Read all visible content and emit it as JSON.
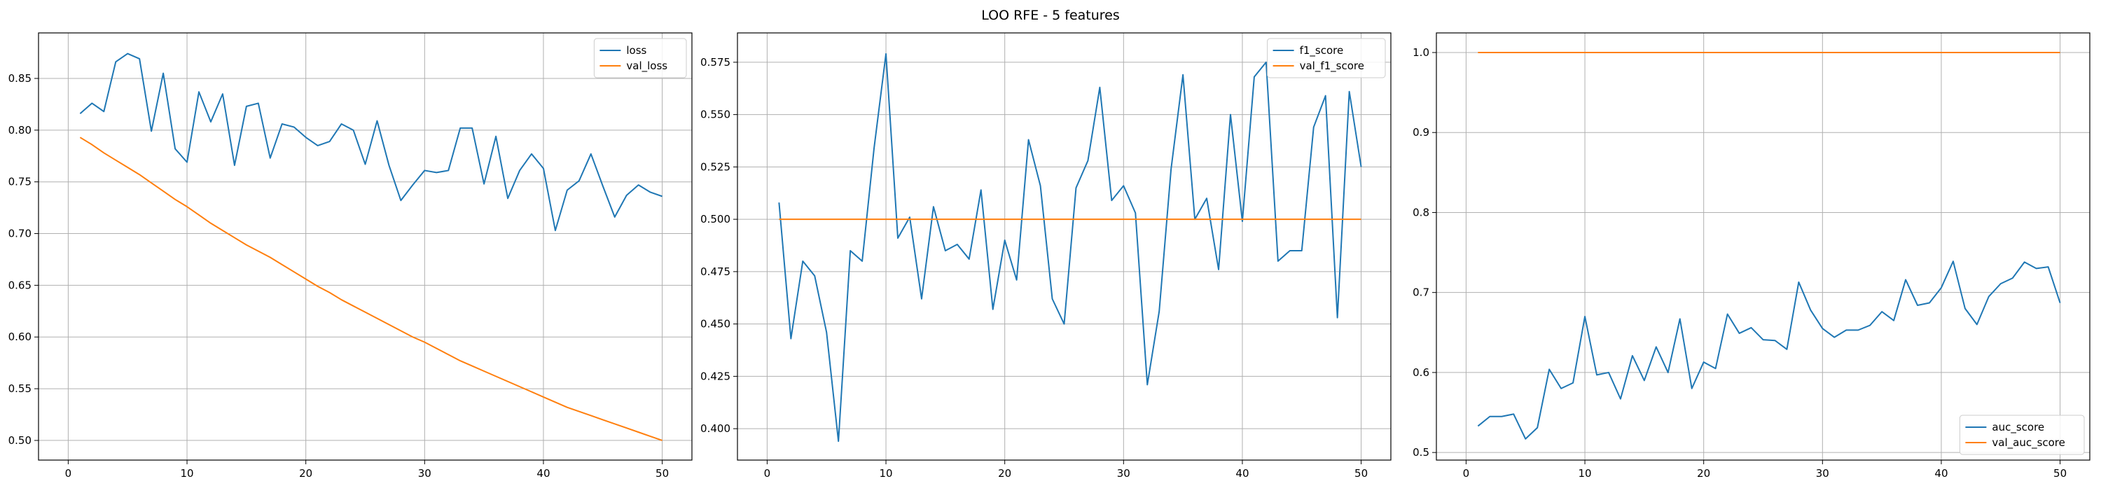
{
  "figure": {
    "title": "LOO RFE - 5 features"
  },
  "chart_data": [
    {
      "type": "line",
      "title": "",
      "xlabel": "",
      "ylabel": "",
      "xlim": [
        -2.5,
        52.5
      ],
      "ylim": [
        0.481,
        0.894
      ],
      "xticks": [
        0,
        10,
        20,
        30,
        40,
        50
      ],
      "yticks": [
        0.5,
        0.55,
        0.6,
        0.65,
        0.7,
        0.75,
        0.8,
        0.85
      ],
      "ytick_labels": [
        "0.50",
        "0.55",
        "0.60",
        "0.65",
        "0.70",
        "0.75",
        "0.80",
        "0.85"
      ],
      "grid": true,
      "legend": "upper right",
      "series": [
        {
          "name": "loss",
          "color": "#1f77b4",
          "x": [
            1,
            2,
            3,
            4,
            5,
            6,
            7,
            8,
            9,
            10,
            11,
            12,
            13,
            14,
            15,
            16,
            17,
            18,
            19,
            20,
            21,
            22,
            23,
            24,
            25,
            26,
            27,
            28,
            29,
            30,
            31,
            32,
            33,
            34,
            35,
            36,
            37,
            38,
            39,
            40,
            41,
            42,
            43,
            44,
            45,
            46,
            47,
            48,
            49,
            50
          ],
          "y": [
            0.816,
            0.826,
            0.818,
            0.866,
            0.874,
            0.869,
            0.799,
            0.855,
            0.782,
            0.769,
            0.837,
            0.808,
            0.835,
            0.766,
            0.823,
            0.826,
            0.773,
            0.806,
            0.803,
            0.793,
            0.785,
            0.789,
            0.806,
            0.8,
            0.767,
            0.809,
            0.766,
            0.732,
            0.747,
            0.761,
            0.759,
            0.761,
            0.802,
            0.802,
            0.748,
            0.794,
            0.734,
            0.761,
            0.777,
            0.763,
            0.703,
            0.742,
            0.751,
            0.777,
            0.746,
            0.716,
            0.737,
            0.747,
            0.74,
            0.736
          ]
        },
        {
          "name": "val_loss",
          "color": "#ff7f0e",
          "x": [
            1,
            2,
            3,
            4,
            5,
            6,
            7,
            8,
            9,
            10,
            11,
            12,
            13,
            14,
            15,
            16,
            17,
            18,
            19,
            20,
            21,
            22,
            23,
            24,
            25,
            26,
            27,
            28,
            29,
            30,
            31,
            32,
            33,
            34,
            35,
            36,
            37,
            38,
            39,
            40,
            41,
            42,
            43,
            44,
            45,
            46,
            47,
            48,
            49,
            50
          ],
          "y": [
            0.793,
            0.786,
            0.778,
            0.771,
            0.764,
            0.757,
            0.749,
            0.741,
            0.733,
            0.726,
            0.718,
            0.71,
            0.703,
            0.696,
            0.689,
            0.683,
            0.677,
            0.67,
            0.663,
            0.656,
            0.649,
            0.643,
            0.636,
            0.63,
            0.624,
            0.618,
            0.612,
            0.606,
            0.6,
            0.595,
            0.589,
            0.583,
            0.577,
            0.572,
            0.567,
            0.562,
            0.557,
            0.552,
            0.547,
            0.542,
            0.537,
            0.532,
            0.528,
            0.524,
            0.52,
            0.516,
            0.512,
            0.508,
            0.504,
            0.5
          ]
        }
      ]
    },
    {
      "type": "line",
      "title": "",
      "xlabel": "",
      "ylabel": "",
      "xlim": [
        -2.5,
        52.5
      ],
      "ylim": [
        0.385,
        0.589
      ],
      "xticks": [
        0,
        10,
        20,
        30,
        40,
        50
      ],
      "yticks": [
        0.4,
        0.425,
        0.45,
        0.475,
        0.5,
        0.525,
        0.55,
        0.575
      ],
      "ytick_labels": [
        "0.400",
        "0.425",
        "0.450",
        "0.475",
        "0.500",
        "0.525",
        "0.550",
        "0.575"
      ],
      "grid": true,
      "legend": "upper right",
      "series": [
        {
          "name": "f1_score",
          "color": "#1f77b4",
          "x": [
            1,
            2,
            3,
            4,
            5,
            6,
            7,
            8,
            9,
            10,
            11,
            12,
            13,
            14,
            15,
            16,
            17,
            18,
            19,
            20,
            21,
            22,
            23,
            24,
            25,
            26,
            27,
            28,
            29,
            30,
            31,
            32,
            33,
            34,
            35,
            36,
            37,
            38,
            39,
            40,
            41,
            42,
            43,
            44,
            45,
            46,
            47,
            48,
            49,
            50
          ],
          "y": [
            0.508,
            0.443,
            0.48,
            0.473,
            0.446,
            0.394,
            0.485,
            0.48,
            0.534,
            0.579,
            0.491,
            0.501,
            0.462,
            0.506,
            0.485,
            0.488,
            0.481,
            0.514,
            0.457,
            0.49,
            0.471,
            0.538,
            0.516,
            0.462,
            0.45,
            0.515,
            0.528,
            0.563,
            0.509,
            0.516,
            0.503,
            0.421,
            0.456,
            0.524,
            0.569,
            0.5,
            0.51,
            0.476,
            0.55,
            0.499,
            0.568,
            0.575,
            0.48,
            0.485,
            0.485,
            0.544,
            0.559,
            0.453,
            0.561,
            0.525
          ]
        },
        {
          "name": "val_f1_score",
          "color": "#ff7f0e",
          "x": [
            1,
            50
          ],
          "y": [
            0.5,
            0.5
          ]
        }
      ]
    },
    {
      "type": "line",
      "title": "",
      "xlabel": "",
      "ylabel": "",
      "xlim": [
        -2.5,
        52.5
      ],
      "ylim": [
        0.4905,
        1.0245
      ],
      "xticks": [
        0,
        10,
        20,
        30,
        40,
        50
      ],
      "yticks": [
        0.5,
        0.6,
        0.7,
        0.8,
        0.9,
        1.0
      ],
      "ytick_labels": [
        "0.5",
        "0.6",
        "0.7",
        "0.8",
        "0.9",
        "1.0"
      ],
      "grid": true,
      "legend": "lower right",
      "series": [
        {
          "name": "auc_score",
          "color": "#1f77b4",
          "x": [
            1,
            2,
            3,
            4,
            5,
            6,
            7,
            8,
            9,
            10,
            11,
            12,
            13,
            14,
            15,
            16,
            17,
            18,
            19,
            20,
            21,
            22,
            23,
            24,
            25,
            26,
            27,
            28,
            29,
            30,
            31,
            32,
            33,
            34,
            35,
            36,
            37,
            38,
            39,
            40,
            41,
            42,
            43,
            44,
            45,
            46,
            47,
            48,
            49,
            50
          ],
          "y": [
            0.533,
            0.545,
            0.545,
            0.548,
            0.517,
            0.531,
            0.604,
            0.58,
            0.587,
            0.67,
            0.597,
            0.6,
            0.567,
            0.621,
            0.59,
            0.632,
            0.6,
            0.667,
            0.58,
            0.613,
            0.605,
            0.673,
            0.649,
            0.656,
            0.641,
            0.64,
            0.629,
            0.713,
            0.678,
            0.655,
            0.644,
            0.653,
            0.653,
            0.659,
            0.676,
            0.665,
            0.716,
            0.684,
            0.687,
            0.706,
            0.739,
            0.68,
            0.66,
            0.695,
            0.711,
            0.718,
            0.738,
            0.73,
            0.732,
            0.687
          ]
        },
        {
          "name": "val_auc_score",
          "color": "#ff7f0e",
          "x": [
            1,
            50
          ],
          "y": [
            1.0,
            1.0
          ]
        }
      ]
    }
  ]
}
